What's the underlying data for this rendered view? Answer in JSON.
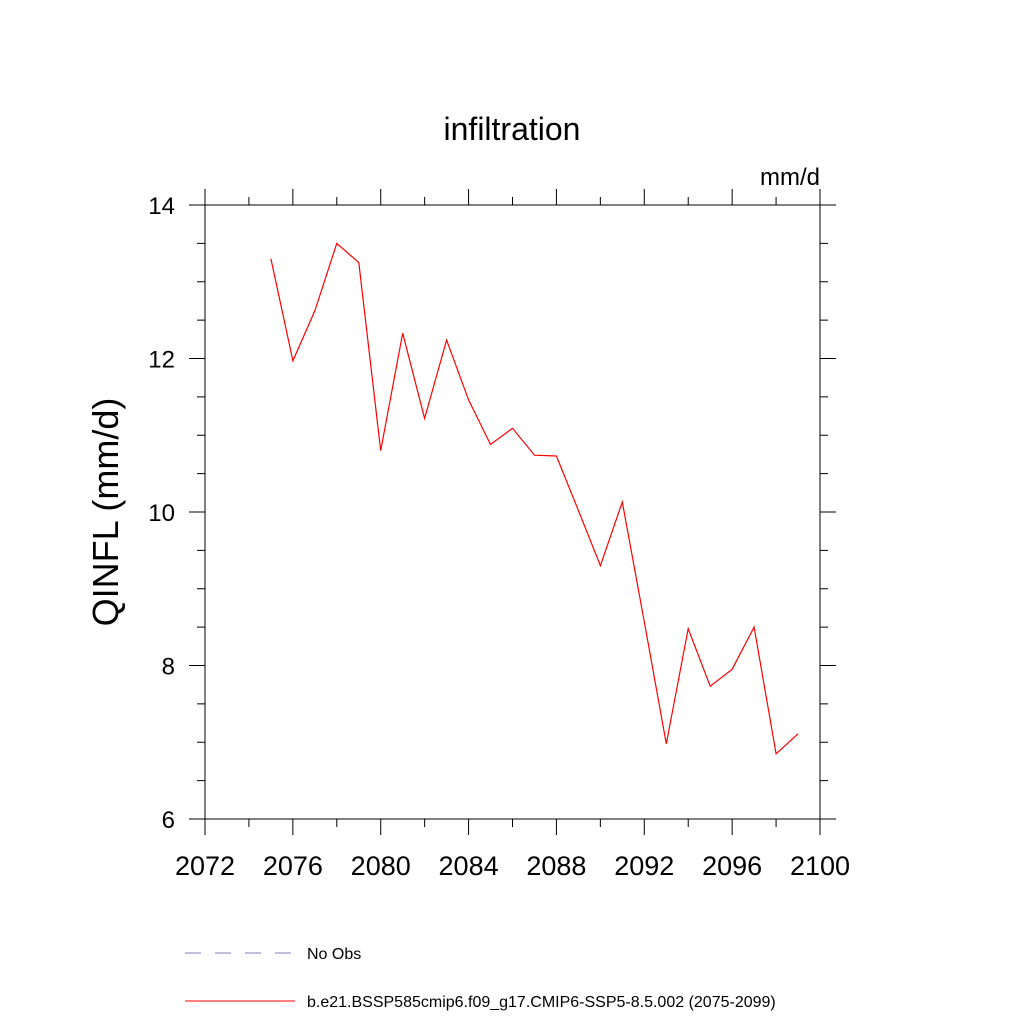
{
  "chart_data": {
    "type": "line",
    "title": "infiltration",
    "units_label": "mm/d",
    "xlabel": "",
    "ylabel": "QINFL  (mm/d)",
    "xlim": [
      2072,
      2100
    ],
    "ylim": [
      6,
      14
    ],
    "x_ticks": [
      "2072",
      "2076",
      "2080",
      "2084",
      "2088",
      "2092",
      "2096",
      "2100"
    ],
    "y_ticks": [
      "6",
      "8",
      "10",
      "12",
      "14"
    ],
    "grid": false,
    "legend_position": "bottom",
    "series": [
      {
        "name": "b.e21.BSSP585cmip6.f09_g17.CMIP6-SSP5-8.5.002 (2075-2099)",
        "color": "#ff0000",
        "style": "solid",
        "x": [
          2075,
          2076,
          2077,
          2078,
          2079,
          2080,
          2081,
          2082,
          2083,
          2084,
          2085,
          2086,
          2087,
          2088,
          2089,
          2090,
          2091,
          2092,
          2093,
          2094,
          2095,
          2096,
          2097,
          2098,
          2099
        ],
        "y": [
          13.3,
          11.97,
          12.62,
          13.5,
          13.25,
          10.8,
          12.33,
          11.22,
          12.24,
          11.46,
          10.88,
          11.09,
          10.74,
          10.73,
          10.02,
          9.3,
          10.13,
          8.57,
          6.98,
          8.48,
          7.73,
          7.95,
          8.5,
          6.85,
          7.11
        ]
      }
    ],
    "legend": [
      {
        "label": "No Obs",
        "color": "#7f7fbf",
        "style": "dashed"
      },
      {
        "label": "b.e21.BSSP585cmip6.f09_g17.CMIP6-SSP5-8.5.002 (2075-2099)",
        "color": "#ff0000",
        "style": "solid"
      }
    ]
  }
}
